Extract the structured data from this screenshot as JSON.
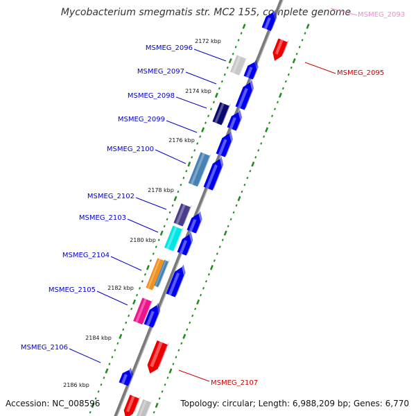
{
  "title": "Mycobacterium smegmatis str. MC2 155, complete genome",
  "accession": "Accession: NC_008596",
  "summary": "Topology: circular; Length: 6,988,209 bp; Genes: 6,770",
  "colors": {
    "backbone": "#808080",
    "tick": "#228b22",
    "forward_gene": "#0000ee",
    "reverse_gene": "#ee0000",
    "left_label": "#0000cc",
    "right_label": "#cc0000",
    "faded_label": "#f08cc8"
  },
  "kbp_labels": [
    "2172 kbp",
    "2174 kbp",
    "2176 kbp",
    "2178 kbp",
    "2180 kbp",
    "2182 kbp",
    "2184 kbp",
    "2186 kbp"
  ],
  "left_genes": [
    {
      "label": "MSMEG_2096",
      "color": "#c8c8c8"
    },
    {
      "label": "MSMEG_2097",
      "color": "#0000ee"
    },
    {
      "label": "MSMEG_2098",
      "color": "#0a0a6e"
    },
    {
      "label": "MSMEG_2099",
      "color": "#0000ee"
    },
    {
      "label": "MSMEG_2100",
      "color": "#4682b4"
    },
    {
      "label": "MSMEG_2102",
      "color": "#483d8b"
    },
    {
      "label": "MSMEG_2103",
      "color": "#00e5e5"
    },
    {
      "label": "MSMEG_2104",
      "color": "#f0901e"
    },
    {
      "label": "MSMEG_2105",
      "color": "#f0148c"
    },
    {
      "label": "MSMEG_2106",
      "color": "#0000ee"
    }
  ],
  "right_genes": [
    {
      "label": "MSMEG_2093"
    },
    {
      "label": "MSMEG_2095"
    },
    {
      "label": "MSMEG_2107"
    }
  ]
}
